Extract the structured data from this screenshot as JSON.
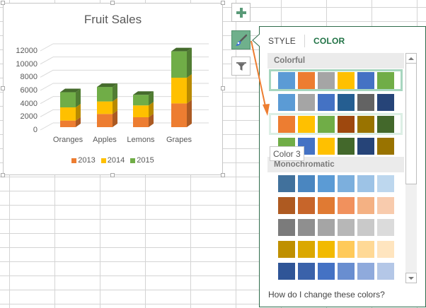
{
  "chart": {
    "title": "Fruit Sales",
    "y_ticks": [
      "0",
      "2000",
      "4000",
      "6000",
      "8000",
      "10000",
      "12000"
    ],
    "categories": [
      "Oranges",
      "Apples",
      "Lemons",
      "Grapes"
    ],
    "legend": [
      {
        "label": "2013",
        "color": "#ED7D31"
      },
      {
        "label": "2014",
        "color": "#FFC000"
      },
      {
        "label": "2015",
        "color": "#70AD47"
      }
    ]
  },
  "chart_data": {
    "type": "bar",
    "subtype": "3d-stacked-column",
    "title": "Fruit Sales",
    "xlabel": "",
    "ylabel": "",
    "categories": [
      "Oranges",
      "Apples",
      "Lemons",
      "Grapes"
    ],
    "series": [
      {
        "name": "2013",
        "color": "#ED7D31",
        "values": [
          1000,
          2000,
          1500,
          3600
        ]
      },
      {
        "name": "2014",
        "color": "#FFC000",
        "values": [
          2000,
          1900,
          1800,
          3900
        ]
      },
      {
        "name": "2015",
        "color": "#70AD47",
        "values": [
          2300,
          2200,
          1600,
          4000
        ]
      }
    ],
    "ylim": [
      0,
      12000
    ],
    "y_ticks": [
      0,
      2000,
      4000,
      6000,
      8000,
      10000,
      12000
    ],
    "grid": true,
    "legend_position": "bottom"
  },
  "side_buttons": [
    {
      "name": "chart-elements",
      "icon": "plus-icon"
    },
    {
      "name": "chart-styles",
      "icon": "paintbrush-icon",
      "active": true
    },
    {
      "name": "chart-filters",
      "icon": "funnel-icon"
    }
  ],
  "panel": {
    "tabs": [
      {
        "label": "STYLE",
        "active": false
      },
      {
        "label": "COLOR",
        "active": true
      }
    ],
    "groups": [
      {
        "label": "Colorful",
        "rows": [
          {
            "colors": [
              "#5B9BD5",
              "#ED7D31",
              "#A5A5A5",
              "#FFC000",
              "#4472C4",
              "#70AD47"
            ],
            "state": "selected"
          },
          {
            "colors": [
              "#5B9BD5",
              "#A5A5A5",
              "#4472C4",
              "#255E91",
              "#636363",
              "#264478"
            ],
            "state": ""
          },
          {
            "colors": [
              "#ED7D31",
              "#FFC000",
              "#70AD47",
              "#9E480E",
              "#997300",
              "#43682B"
            ],
            "state": "hover"
          },
          {
            "colors": [
              "#70AD47",
              "#4472C4",
              "#FFC000",
              "#43682B",
              "#264478",
              "#997300"
            ],
            "state": ""
          }
        ]
      },
      {
        "label": "Monochromatic",
        "rows": [
          {
            "colors": [
              "#41719C",
              "#4A86C0",
              "#5B9BD5",
              "#7CAFDD",
              "#9DC3E6",
              "#BDD7EE"
            ]
          },
          {
            "colors": [
              "#AE5A21",
              "#C7652A",
              "#E07A33",
              "#F1915D",
              "#F4B183",
              "#F8CBAD"
            ]
          },
          {
            "colors": [
              "#7B7B7B",
              "#8F8F8F",
              "#A5A5A5",
              "#B7B7B7",
              "#C9C9C9",
              "#DBDBDB"
            ]
          },
          {
            "colors": [
              "#BF9000",
              "#DBA800",
              "#F2BA00",
              "#FFCA5A",
              "#FFD996",
              "#FFE5BF"
            ]
          },
          {
            "colors": [
              "#2F5597",
              "#3A62AA",
              "#4472C4",
              "#698ED0",
              "#8FAADC",
              "#B4C7E7"
            ]
          }
        ]
      }
    ],
    "tooltip": "Color 3",
    "help_link": "How do I change these colors?"
  },
  "colors": {
    "accent": "#217346",
    "panel_border": "#2E6B4B",
    "active_button": "#6FB08C",
    "annotation_arrow": "#ED7D31"
  }
}
